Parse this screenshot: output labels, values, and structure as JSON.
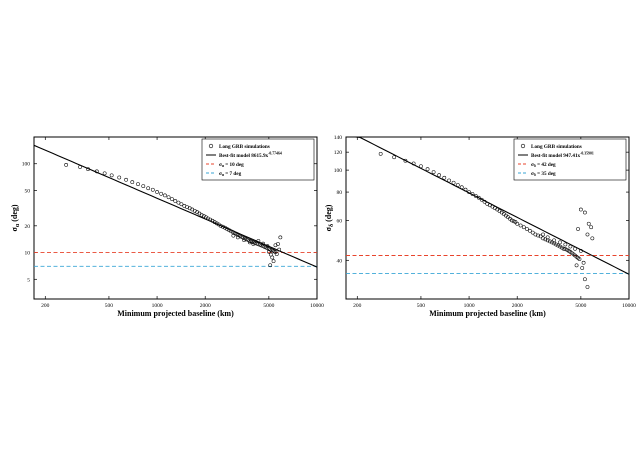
{
  "chart_data": [
    {
      "type": "scatter",
      "xlabel": "Minimum projected baseline (km)",
      "ylabel": "σα (deg)",
      "ylabel_main": "σ",
      "ylabel_sub": "α",
      "ylabel_unit": " (deg)",
      "x_scale": "log",
      "y_scale": "log",
      "xlim": [
        170,
        10000
      ],
      "ylim": [
        3,
        200
      ],
      "xticks": [
        200,
        500,
        1000,
        2000,
        5000,
        10000
      ],
      "yticks": [
        5,
        10,
        20,
        50,
        100
      ],
      "legend_position": "top-right",
      "legend": {
        "points": "Long GRB simulations",
        "fit_prefix": "Best-fit model  8615.9x",
        "fit_exp": "-0.77464",
        "line1": "σα = 10 deg",
        "line1_main": "σ",
        "line1_sub": "α",
        "line1_rest": " = 10 deg",
        "line2": "σα = 7 deg",
        "line2_main": "σ",
        "line2_sub": "α",
        "line2_rest": " = 7 deg"
      },
      "fit": {
        "a": 8615.9,
        "b": -0.77464
      },
      "hlines": [
        {
          "y": 10,
          "color": "#e8442c"
        },
        {
          "y": 7,
          "color": "#3aa6d6"
        }
      ],
      "points": [
        [
          270,
          97
        ],
        [
          330,
          92
        ],
        [
          370,
          87
        ],
        [
          420,
          82
        ],
        [
          470,
          78
        ],
        [
          520,
          74
        ],
        [
          580,
          70
        ],
        [
          640,
          66
        ],
        [
          700,
          62
        ],
        [
          760,
          59
        ],
        [
          820,
          56
        ],
        [
          880,
          53
        ],
        [
          940,
          51
        ],
        [
          1000,
          48
        ],
        [
          1060,
          46
        ],
        [
          1120,
          44
        ],
        [
          1180,
          42
        ],
        [
          1240,
          40
        ],
        [
          1300,
          38
        ],
        [
          1360,
          36.5
        ],
        [
          1420,
          35
        ],
        [
          1480,
          33.5
        ],
        [
          1540,
          32.5
        ],
        [
          1600,
          31.5
        ],
        [
          1660,
          30.5
        ],
        [
          1720,
          29.5
        ],
        [
          1780,
          28.5
        ],
        [
          1840,
          27.5
        ],
        [
          1900,
          26.5
        ],
        [
          1960,
          25.8
        ],
        [
          2020,
          25
        ],
        [
          2080,
          24.2
        ],
        [
          2150,
          23.5
        ],
        [
          2220,
          22.8
        ],
        [
          2290,
          22
        ],
        [
          2360,
          21.3
        ],
        [
          2430,
          20.7
        ],
        [
          2500,
          20
        ],
        [
          2580,
          19.5
        ],
        [
          2660,
          19
        ],
        [
          2740,
          18.4
        ],
        [
          2820,
          17.9
        ],
        [
          2900,
          17.4
        ],
        [
          2980,
          17
        ],
        [
          3060,
          16.5
        ],
        [
          3140,
          16.1
        ],
        [
          3220,
          15.7
        ],
        [
          3300,
          15.4
        ],
        [
          3380,
          15
        ],
        [
          3460,
          14.7
        ],
        [
          3540,
          14.4
        ],
        [
          3620,
          14.1
        ],
        [
          3700,
          13.9
        ],
        [
          3780,
          13.6
        ],
        [
          3860,
          13.4
        ],
        [
          3940,
          13.2
        ],
        [
          4020,
          13
        ],
        [
          4100,
          12.8
        ],
        [
          4200,
          12.6
        ],
        [
          4300,
          12.4
        ],
        [
          4400,
          12.2
        ],
        [
          4500,
          12
        ],
        [
          4600,
          11.8
        ],
        [
          4700,
          11.6
        ],
        [
          4800,
          11.4
        ],
        [
          4900,
          11.2
        ],
        [
          5000,
          11
        ],
        [
          5100,
          10.8
        ],
        [
          5200,
          10.6
        ],
        [
          5300,
          10.5
        ],
        [
          5400,
          10.3
        ],
        [
          5500,
          10.1
        ],
        [
          3000,
          15.5
        ],
        [
          3200,
          14.8
        ],
        [
          3500,
          13.8
        ],
        [
          3800,
          13
        ],
        [
          4000,
          12.5
        ],
        [
          4300,
          13.5
        ],
        [
          4600,
          12.6
        ],
        [
          4900,
          11.8
        ],
        [
          5000,
          10.2
        ],
        [
          5150,
          9.5
        ],
        [
          5250,
          8.8
        ],
        [
          5350,
          8
        ],
        [
          5100,
          7.2
        ],
        [
          5600,
          9.6
        ],
        [
          5800,
          10.8
        ],
        [
          5700,
          12.5
        ],
        [
          5500,
          12.1
        ],
        [
          5900,
          14.8
        ]
      ]
    },
    {
      "type": "scatter",
      "xlabel": "Minimum projected baseline (km)",
      "ylabel": "σδ (deg)",
      "ylabel_main": "σ",
      "ylabel_sub": "δ",
      "ylabel_unit": " (deg)",
      "x_scale": "log",
      "y_scale": "log",
      "xlim": [
        170,
        10000
      ],
      "ylim": [
        27,
        140
      ],
      "xticks": [
        200,
        500,
        1000,
        2000,
        5000,
        10000
      ],
      "yticks": [
        40,
        60,
        80,
        100,
        120,
        140
      ],
      "legend_position": "top-right",
      "legend": {
        "points": "Long GRB simulations",
        "fit_prefix": "Best-fit model  947.41x",
        "fit_exp": "-0.35901",
        "line1": "σδ = 42 deg",
        "line1_main": "σ",
        "line1_sub": "δ",
        "line1_rest": " = 42 deg",
        "line2": "σδ = 35 deg",
        "line2_main": "σ",
        "line2_sub": "δ",
        "line2_rest": " = 35 deg"
      },
      "fit": {
        "a": 947.41,
        "b": -0.35901
      },
      "hlines": [
        {
          "y": 42,
          "color": "#e8442c"
        },
        {
          "y": 35,
          "color": "#3aa6d6"
        }
      ],
      "points": [
        [
          280,
          118
        ],
        [
          340,
          114
        ],
        [
          400,
          110
        ],
        [
          450,
          107
        ],
        [
          500,
          104
        ],
        [
          550,
          101
        ],
        [
          600,
          98
        ],
        [
          650,
          95
        ],
        [
          700,
          92.5
        ],
        [
          750,
          90
        ],
        [
          800,
          88
        ],
        [
          850,
          86
        ],
        [
          900,
          84
        ],
        [
          950,
          82
        ],
        [
          1000,
          80
        ],
        [
          1050,
          78.5
        ],
        [
          1100,
          77
        ],
        [
          1150,
          75.5
        ],
        [
          1200,
          74
        ],
        [
          1250,
          72.5
        ],
        [
          1300,
          71
        ],
        [
          1350,
          70
        ],
        [
          1400,
          69
        ],
        [
          1450,
          68
        ],
        [
          1500,
          67
        ],
        [
          1550,
          66
        ],
        [
          1600,
          65
        ],
        [
          1650,
          64
        ],
        [
          1700,
          63
        ],
        [
          1750,
          62
        ],
        [
          1800,
          61
        ],
        [
          1850,
          60
        ],
        [
          1900,
          59.5
        ],
        [
          1950,
          59
        ],
        [
          2000,
          58
        ],
        [
          2100,
          57
        ],
        [
          2200,
          56
        ],
        [
          2300,
          55
        ],
        [
          2400,
          54
        ],
        [
          2500,
          53
        ],
        [
          2600,
          52
        ],
        [
          2700,
          51.5
        ],
        [
          2800,
          51
        ],
        [
          2900,
          50
        ],
        [
          3000,
          49.5
        ],
        [
          3100,
          49
        ],
        [
          3200,
          48.5
        ],
        [
          3300,
          48
        ],
        [
          3400,
          47.5
        ],
        [
          3500,
          47
        ],
        [
          3600,
          46.5
        ],
        [
          3700,
          46
        ],
        [
          3800,
          45.5
        ],
        [
          3900,
          45
        ],
        [
          4000,
          44.8
        ],
        [
          4100,
          44.5
        ],
        [
          4200,
          44
        ],
        [
          4300,
          43.5
        ],
        [
          4400,
          43
        ],
        [
          4500,
          42.5
        ],
        [
          4600,
          42
        ],
        [
          4700,
          41.5
        ],
        [
          4800,
          41
        ],
        [
          4900,
          40.5
        ],
        [
          2900,
          52
        ],
        [
          3100,
          50.5
        ],
        [
          3400,
          49
        ],
        [
          3700,
          48
        ],
        [
          4000,
          47
        ],
        [
          4300,
          46
        ],
        [
          4600,
          45
        ],
        [
          5000,
          44
        ],
        [
          4700,
          38
        ],
        [
          5100,
          37
        ],
        [
          5300,
          33
        ],
        [
          5500,
          30.5
        ],
        [
          5200,
          39
        ],
        [
          5000,
          67
        ],
        [
          5300,
          65
        ],
        [
          5600,
          58
        ],
        [
          5800,
          56
        ],
        [
          5500,
          52
        ],
        [
          5900,
          50
        ],
        [
          4800,
          55
        ]
      ]
    }
  ]
}
